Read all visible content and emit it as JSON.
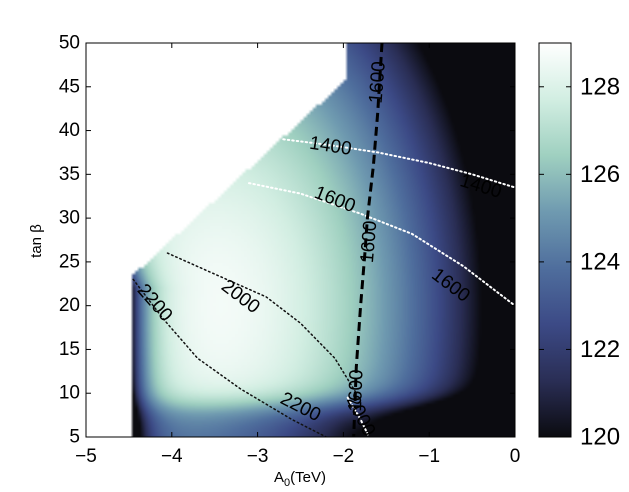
{
  "chart_data": {
    "type": "heatmap",
    "title": "",
    "xlabel": "A",
    "xlabel_sub": "0",
    "xlabel_unit": "(TeV)",
    "ylabel": "tan β",
    "xlim": [
      -5,
      0
    ],
    "ylim": [
      5,
      50
    ],
    "x_ticks": [
      -5,
      -4,
      -3,
      -2,
      -1,
      0
    ],
    "x_tick_labels": [
      "−5",
      "−4",
      "−3",
      "−2",
      "−1",
      "0"
    ],
    "y_ticks": [
      5,
      10,
      15,
      20,
      25,
      30,
      35,
      40,
      45,
      50
    ],
    "y_tick_labels": [
      "5",
      "10",
      "15",
      "20",
      "25",
      "30",
      "35",
      "40",
      "45",
      "50"
    ],
    "colorbar": {
      "range": [
        120,
        129
      ],
      "ticks": [
        120,
        122,
        124,
        126,
        128
      ],
      "tick_labels": [
        "120",
        "122",
        "124",
        "126",
        "128"
      ],
      "colors": [
        "#0b0b10",
        "#2a2e55",
        "#3c4a86",
        "#4f6e9d",
        "#6f9ab0",
        "#9fd0c0",
        "#d2eee2",
        "#ffffff"
      ]
    },
    "excluded_region_boundary": [
      [
        -4.45,
        5
      ],
      [
        -4.45,
        23.5
      ],
      [
        -1.95,
        46
      ],
      [
        -1.95,
        50
      ]
    ],
    "field_model": {
      "peak_value": 128.7,
      "peak_location": [
        -3.5,
        20
      ],
      "low_value_edges": [
        "bottom",
        "left",
        "right"
      ]
    },
    "contours": [
      {
        "style": "white-dotted",
        "label": "1400",
        "points": [
          [
            -2.7,
            39
          ],
          [
            -2.2,
            38.4
          ],
          [
            -1.6,
            37.5
          ],
          [
            -1.0,
            36.3
          ],
          [
            -0.5,
            35.0
          ],
          [
            0,
            33.5
          ]
        ],
        "label_positions": [
          [
            -2.15,
            38.2
          ],
          [
            -0.4,
            33.6
          ]
        ]
      },
      {
        "style": "white-dotted",
        "label": "1600",
        "points": [
          [
            -3.1,
            34
          ],
          [
            -2.5,
            32.8
          ],
          [
            -1.8,
            30.5
          ],
          [
            -1.2,
            28.2
          ],
          [
            -0.6,
            24.5
          ],
          [
            0,
            20.0
          ]
        ],
        "label_positions": [
          [
            -2.1,
            32.1
          ],
          [
            -0.75,
            22.3
          ]
        ]
      },
      {
        "style": "black-dotted",
        "label": "2000",
        "points": [
          [
            -4.05,
            26
          ],
          [
            -3.5,
            23.6
          ],
          [
            -2.9,
            21.0
          ],
          [
            -2.5,
            18.0
          ],
          [
            -2.1,
            14.0
          ],
          [
            -1.85,
            10.0
          ]
        ],
        "label_positions": [
          [
            -3.2,
            21.0
          ]
        ]
      },
      {
        "style": "black-dotted",
        "label": "2200",
        "points": [
          [
            -4.45,
            23.0
          ],
          [
            -4.1,
            18.5
          ],
          [
            -3.7,
            14.0
          ],
          [
            -3.2,
            10.5
          ],
          [
            -2.6,
            7.0
          ],
          [
            -2.2,
            5.0
          ]
        ],
        "label_positions": [
          [
            -4.2,
            20.3
          ],
          [
            -2.5,
            8.4
          ]
        ]
      },
      {
        "style": "black-dashed",
        "label": "1600",
        "points": [
          [
            -1.55,
            50
          ],
          [
            -1.6,
            42
          ],
          [
            -1.65,
            36
          ],
          [
            -1.72,
            30
          ],
          [
            -1.75,
            26
          ],
          [
            -1.8,
            20
          ],
          [
            -1.85,
            13
          ],
          [
            -1.88,
            5
          ]
        ],
        "label_positions": [
          [
            -1.6,
            45.5
          ],
          [
            -1.7,
            27.3
          ],
          [
            -1.85,
            10.3
          ]
        ]
      },
      {
        "style": "white-dotted",
        "label": "2000",
        "points": [
          [
            -1.95,
            9.5
          ],
          [
            -1.8,
            7.0
          ],
          [
            -1.7,
            5.0
          ]
        ],
        "label_positions": [
          [
            -1.8,
            7.4
          ]
        ]
      }
    ]
  }
}
